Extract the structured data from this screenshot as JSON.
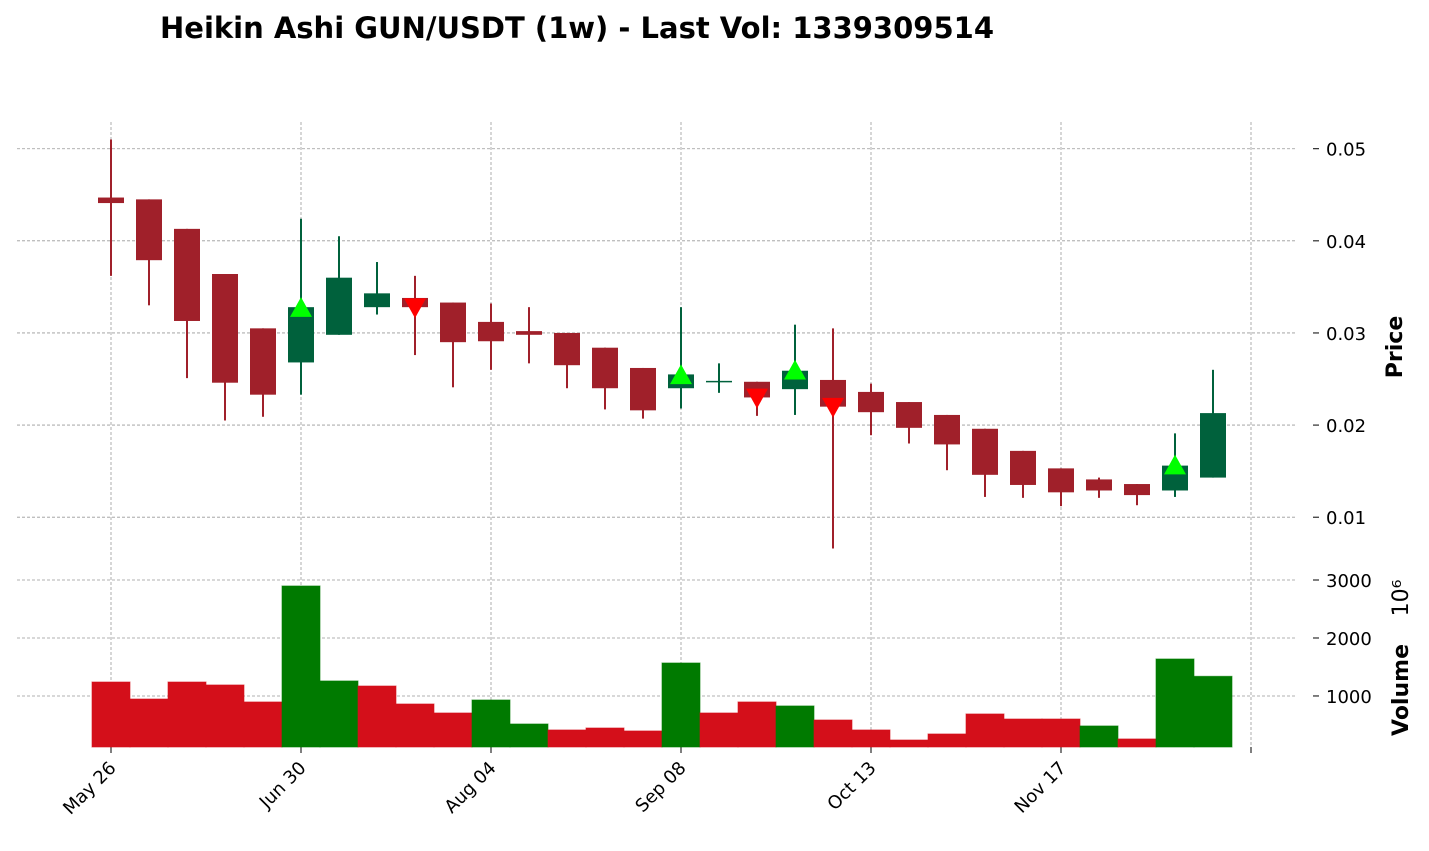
{
  "chart_data": {
    "type": "candlestick",
    "title": "Heikin Ashi GUN/USDT (1w) - Last Vol: 1339309514",
    "ylabel": "Price",
    "categories": [
      "May 26",
      null,
      null,
      null,
      null,
      "Jun 30",
      null,
      null,
      null,
      null,
      "Aug 04",
      null,
      null,
      null,
      null,
      "Sep 08",
      null,
      null,
      null,
      null,
      "Oct 13",
      null,
      null,
      null,
      null,
      "Nov 17",
      null,
      null,
      null,
      null
    ],
    "xticks": [
      0,
      5,
      10,
      15,
      20,
      25,
      30
    ],
    "open": [
      0.0447,
      0.0445,
      0.0413,
      0.0364,
      0.0305,
      0.0268,
      0.0298,
      0.0328,
      0.0338,
      0.0333,
      0.0312,
      0.0302,
      0.03,
      0.0284,
      0.0262,
      0.024,
      0.0247,
      0.0247,
      0.0239,
      0.0249,
      0.0236,
      0.0225,
      0.0211,
      0.0196,
      0.0172,
      0.0153,
      0.0141,
      0.0136,
      0.0129,
      0.0143
    ],
    "high": [
      0.051,
      0.0445,
      0.0413,
      0.0364,
      0.0305,
      0.0424,
      0.0405,
      0.0377,
      0.0362,
      0.0333,
      0.0332,
      0.0328,
      0.03,
      0.0284,
      0.0262,
      0.0328,
      0.0267,
      0.0247,
      0.0309,
      0.0305,
      0.0245,
      0.0225,
      0.0211,
      0.0196,
      0.0172,
      0.0153,
      0.0143,
      0.0136,
      0.0191,
      0.026
    ],
    "low": [
      0.0362,
      0.033,
      0.0251,
      0.0205,
      0.0209,
      0.0233,
      0.0298,
      0.032,
      0.0276,
      0.0241,
      0.026,
      0.0267,
      0.024,
      0.0217,
      0.0207,
      0.0218,
      0.0235,
      0.021,
      0.0211,
      0.0066,
      0.0189,
      0.018,
      0.0151,
      0.0122,
      0.0121,
      0.0112,
      0.0121,
      0.0113,
      0.0122,
      0.0143
    ],
    "close": [
      0.0441,
      0.0379,
      0.0313,
      0.0246,
      0.0233,
      0.0328,
      0.036,
      0.0343,
      0.0328,
      0.029,
      0.0291,
      0.0298,
      0.0265,
      0.024,
      0.0216,
      0.0255,
      0.0248,
      0.023,
      0.0259,
      0.022,
      0.0214,
      0.0197,
      0.0179,
      0.0146,
      0.0135,
      0.0127,
      0.0129,
      0.0124,
      0.0156,
      0.0213
    ],
    "up_color": "#00613c",
    "down_color": "#a0202a",
    "buy_signals": {
      "color": "#00ff00",
      "values": [
        null,
        null,
        null,
        null,
        null,
        0.0327,
        null,
        null,
        null,
        null,
        null,
        null,
        null,
        null,
        null,
        0.0254,
        null,
        null,
        0.0259,
        null,
        null,
        null,
        null,
        null,
        null,
        null,
        null,
        null,
        0.0156,
        null
      ]
    },
    "sell_signals": {
      "color": "#ff0000",
      "values": [
        null,
        null,
        null,
        null,
        null,
        null,
        null,
        null,
        0.0328,
        null,
        null,
        null,
        null,
        null,
        null,
        null,
        null,
        0.023,
        null,
        0.022,
        null,
        null,
        null,
        null,
        null,
        null,
        null,
        null,
        null,
        null
      ]
    },
    "ylim": [
      0.0034,
      0.0529
    ],
    "yticks": [
      0.01,
      0.02,
      0.03,
      0.04,
      0.05
    ],
    "grid": true,
    "volume": {
      "ylabel": "Volume",
      "unit": "10⁶",
      "values": [
        1241,
        948,
        1241,
        1190,
        897,
        2897,
        1259,
        1172,
        862,
        707,
        931,
        517,
        414,
        448,
        397,
        1569,
        707,
        897,
        828,
        586,
        414,
        241,
        345,
        690,
        603,
        603,
        483,
        259,
        1638,
        1339
      ],
      "colors": [
        "#d40f1a",
        "#d40f1a",
        "#d40f1a",
        "#d40f1a",
        "#d40f1a",
        "#007a00",
        "#007a00",
        "#d40f1a",
        "#d40f1a",
        "#d40f1a",
        "#007a00",
        "#007a00",
        "#d40f1a",
        "#d40f1a",
        "#d40f1a",
        "#007a00",
        "#d40f1a",
        "#d40f1a",
        "#007a00",
        "#d40f1a",
        "#d40f1a",
        "#d40f1a",
        "#d40f1a",
        "#d40f1a",
        "#d40f1a",
        "#d40f1a",
        "#007a00",
        "#d40f1a",
        "#007a00",
        "#007a00"
      ],
      "ylim": [
        120,
        3000
      ],
      "yticks": [
        1000,
        2000,
        3000
      ]
    }
  }
}
